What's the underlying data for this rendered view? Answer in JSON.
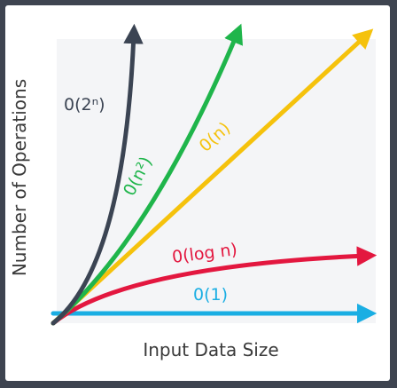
{
  "chart_data": {
    "type": "line",
    "title": "",
    "xlabel": "Input Data Size",
    "ylabel": "Number of Operations",
    "grid": false,
    "legend": "none",
    "series": [
      {
        "key": "exp",
        "name": "0(2ⁿ)",
        "color": "#3b4453"
      },
      {
        "key": "quad",
        "name": "0(n²)",
        "color": "#1fb54b"
      },
      {
        "key": "linear",
        "name": "0(n)",
        "color": "#f5c20c"
      },
      {
        "key": "log",
        "name": "0(log n)",
        "color": "#e3173f"
      },
      {
        "key": "const",
        "name": "0(1)",
        "color": "#1aaee3"
      }
    ]
  }
}
